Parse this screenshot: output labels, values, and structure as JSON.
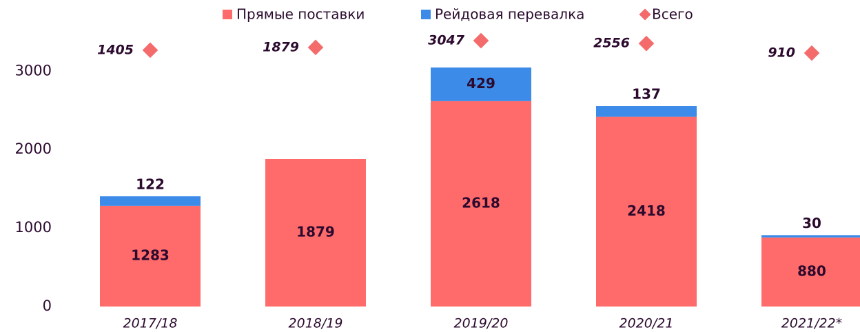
{
  "chart_data": {
    "type": "bar",
    "stacked": true,
    "categories": [
      "2017/18",
      "2018/19",
      "2019/20",
      "2020/21",
      "2021/22*"
    ],
    "series": [
      {
        "name": "Прямые поставки",
        "color": "#ff6b6b",
        "values": [
          1283,
          1879,
          2618,
          2418,
          880
        ]
      },
      {
        "name": "Рейдовая перевалка",
        "color": "#3d8be8",
        "values": [
          122,
          null,
          429,
          137,
          30
        ]
      },
      {
        "name": "Всего",
        "color": "#f46b6b",
        "type": "scatter",
        "marker": "diamond",
        "axis": "y2",
        "values": [
          1405,
          1879,
          3047,
          2556,
          910
        ]
      }
    ],
    "ylim": [
      0,
      3600
    ],
    "yticks": [
      0,
      1000,
      2000,
      3000
    ],
    "y2lim": [
      -42800,
      5900
    ],
    "legend": "top"
  }
}
